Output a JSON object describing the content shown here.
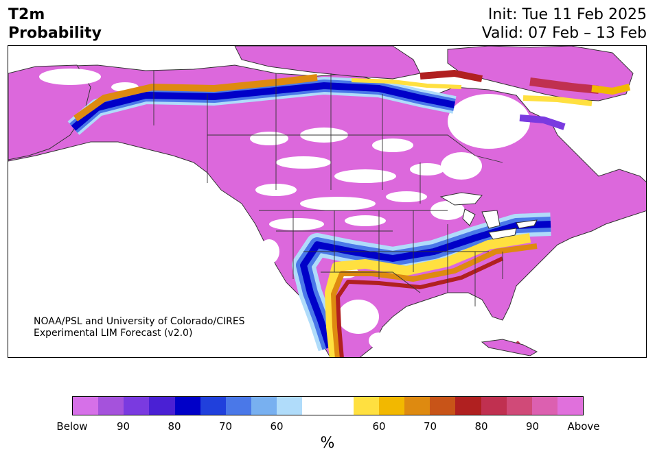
{
  "header": {
    "variable": "T2m",
    "product": "Probability",
    "init": "Init: Tue 11 Feb 2025",
    "valid": "Valid: 07 Feb – 13 Feb"
  },
  "credit": {
    "line1": "NOAA/PSL and University of Colorado/CIRES",
    "line2": "Experimental LIM Forecast (v2.0)"
  },
  "colorbar": {
    "colors": [
      "#d670e8",
      "#a552dc",
      "#7a3ae0",
      "#4a20d4",
      "#0000c8",
      "#2040dc",
      "#4a78e8",
      "#78b0f0",
      "#b0dcfa",
      "#ffffff",
      "#ffffff",
      "#ffe040",
      "#f2b800",
      "#de8a10",
      "#c85418",
      "#b02020",
      "#c03050",
      "#d04a78",
      "#dc60b0",
      "#e070dc"
    ],
    "labels": [
      "Below",
      "90",
      "80",
      "70",
      "60",
      "60",
      "70",
      "80",
      "90",
      "Above"
    ],
    "unit": "%"
  },
  "legend_categories": {
    "below": "Below",
    "above": "Above"
  }
}
